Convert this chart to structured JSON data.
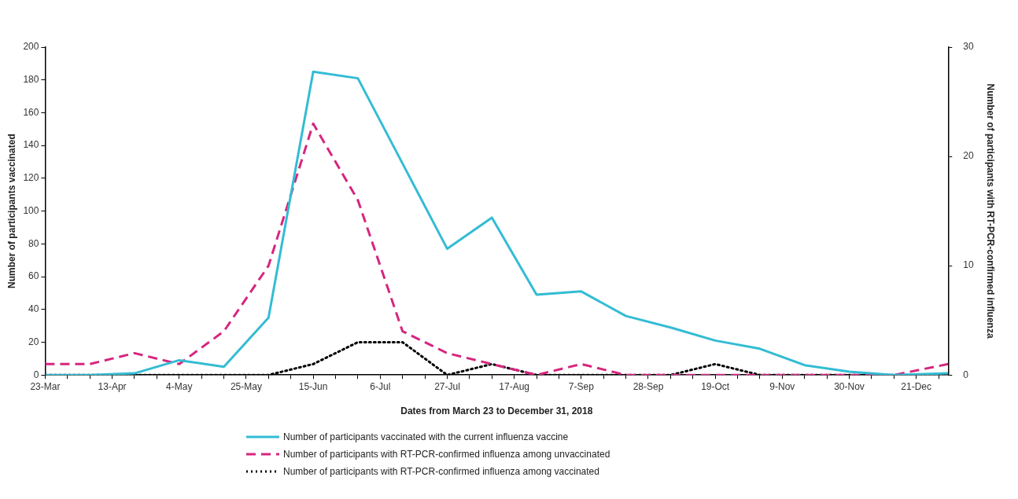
{
  "chart_data": {
    "type": "line",
    "xlabel": "Dates from March 23 to December 31, 2018",
    "ylabel": "Number of participants vaccinated",
    "y2label": "Number of participants with RT-PCR-confirmed influenza",
    "x": [
      "2018-03-23",
      "2018-04-06",
      "2018-04-20",
      "2018-05-04",
      "2018-05-18",
      "2018-06-01",
      "2018-06-15",
      "2018-06-29",
      "2018-07-13",
      "2018-07-27",
      "2018-08-10",
      "2018-08-24",
      "2018-09-07",
      "2018-09-21",
      "2018-10-05",
      "2018-10-19",
      "2018-11-02",
      "2018-11-16",
      "2018-11-30",
      "2018-12-14",
      "2018-12-31"
    ],
    "series": [
      {
        "name": "Number of participants  vaccinated with the current influenza vaccine",
        "color": "#33bcd4",
        "line_style": "solid",
        "values": [
          0,
          0,
          1,
          9,
          5,
          35,
          185,
          181,
          129,
          77,
          96,
          49,
          51,
          36,
          29,
          21,
          16,
          6,
          2,
          0,
          1
        ]
      },
      {
        "name": "Number of participants with RT-PCR-confirmed influenza among unvaccinated",
        "color": "#d6267f",
        "line_style": "dashed",
        "axis": "y2",
        "values": [
          1,
          1,
          2,
          1,
          4,
          10,
          23,
          16,
          4,
          2,
          1,
          0,
          1,
          0,
          0,
          0,
          0,
          0,
          0,
          0,
          1
        ]
      },
      {
        "name": "Number of participants with RT-PCR-confirmed influenza among vaccinated",
        "color": "#000000",
        "line_style": "dotted",
        "axis": "y2",
        "values": [
          0,
          0,
          0,
          0,
          0,
          0,
          1,
          3,
          3,
          0,
          1,
          0,
          0,
          0,
          0,
          1,
          0,
          0,
          0,
          0,
          0
        ]
      }
    ],
    "xlim": [
      "2018-03-23",
      "2018-12-31"
    ],
    "xticks": [
      {
        "value": "2018-03-23",
        "label": "23-Mar"
      },
      {
        "value": "2018-03-30",
        "label": null
      },
      {
        "value": "2018-04-06",
        "label": null
      },
      {
        "value": "2018-04-13",
        "label": "13-Apr"
      },
      {
        "value": "2018-04-20",
        "label": null
      },
      {
        "value": "2018-04-27",
        "label": null
      },
      {
        "value": "2018-05-04",
        "label": "4-May"
      },
      {
        "value": "2018-05-11",
        "label": null
      },
      {
        "value": "2018-05-18",
        "label": null
      },
      {
        "value": "2018-05-25",
        "label": "25-May"
      },
      {
        "value": "2018-06-01",
        "label": null
      },
      {
        "value": "2018-06-08",
        "label": null
      },
      {
        "value": "2018-06-15",
        "label": "15-Jun"
      },
      {
        "value": "2018-06-22",
        "label": null
      },
      {
        "value": "2018-06-29",
        "label": null
      },
      {
        "value": "2018-07-06",
        "label": "6-Jul"
      },
      {
        "value": "2018-07-13",
        "label": null
      },
      {
        "value": "2018-07-20",
        "label": null
      },
      {
        "value": "2018-07-27",
        "label": "27-Jul"
      },
      {
        "value": "2018-08-03",
        "label": null
      },
      {
        "value": "2018-08-10",
        "label": null
      },
      {
        "value": "2018-08-17",
        "label": "17-Aug"
      },
      {
        "value": "2018-08-24",
        "label": null
      },
      {
        "value": "2018-08-31",
        "label": null
      },
      {
        "value": "2018-09-07",
        "label": "7-Sep"
      },
      {
        "value": "2018-09-14",
        "label": null
      },
      {
        "value": "2018-09-21",
        "label": null
      },
      {
        "value": "2018-09-28",
        "label": "28-Sep"
      },
      {
        "value": "2018-10-05",
        "label": null
      },
      {
        "value": "2018-10-12",
        "label": null
      },
      {
        "value": "2018-10-19",
        "label": "19-Oct"
      },
      {
        "value": "2018-10-26",
        "label": null
      },
      {
        "value": "2018-11-02",
        "label": null
      },
      {
        "value": "2018-11-09",
        "label": "9-Nov"
      },
      {
        "value": "2018-11-16",
        "label": null
      },
      {
        "value": "2018-11-23",
        "label": null
      },
      {
        "value": "2018-11-30",
        "label": "30-Nov"
      },
      {
        "value": "2018-12-07",
        "label": null
      },
      {
        "value": "2018-12-14",
        "label": null
      },
      {
        "value": "2018-12-21",
        "label": "21-Dec"
      },
      {
        "value": "2018-12-28",
        "label": null
      }
    ],
    "ylim": [
      0,
      200
    ],
    "yticks": [
      0,
      20,
      40,
      60,
      80,
      100,
      120,
      140,
      160,
      180,
      200
    ],
    "y2lim": [
      0,
      30
    ],
    "y2ticks": [
      0,
      10,
      20,
      30
    ],
    "legend": "bottom"
  }
}
